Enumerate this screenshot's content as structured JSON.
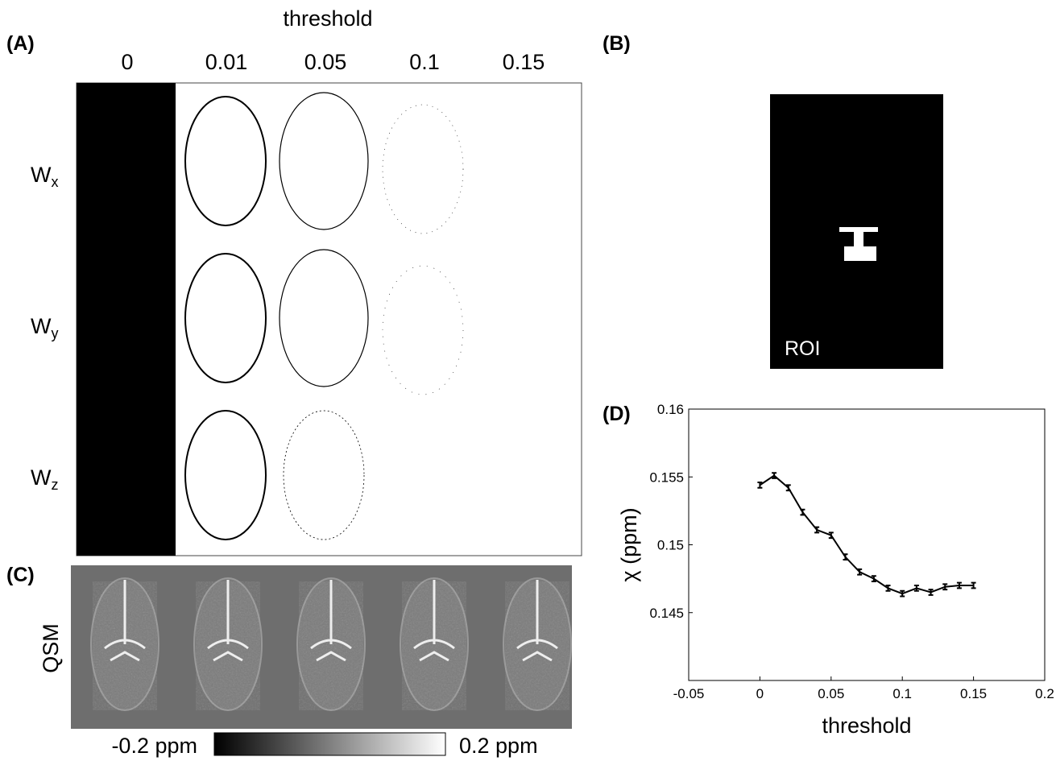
{
  "panels": {
    "a": {
      "label": "(A)",
      "heading": "threshold",
      "columns": [
        "0",
        "0.01",
        "0.05",
        "0.1",
        "0.15"
      ],
      "rows": [
        {
          "symbol": "W",
          "subscript": "x"
        },
        {
          "symbol": "W",
          "subscript": "y"
        },
        {
          "symbol": "W",
          "subscript": "z"
        }
      ]
    },
    "b": {
      "label": "(B)",
      "caption": "ROI"
    },
    "c": {
      "label": "(C)",
      "row_label": "QSM",
      "colorbar_min": "-0.2 ppm",
      "colorbar_max": "0.2 ppm"
    },
    "d": {
      "label": "(D)"
    }
  },
  "chart_data": {
    "type": "line",
    "xlabel": "threshold",
    "ylabel": "χ (ppm)",
    "color": "#000000",
    "x": [
      0,
      0.01,
      0.02,
      0.03,
      0.04,
      0.05,
      0.06,
      0.07,
      0.08,
      0.09,
      0.1,
      0.11,
      0.12,
      0.13,
      0.14,
      0.15
    ],
    "values": [
      0.1544,
      0.1551,
      0.1542,
      0.1524,
      0.1511,
      0.1507,
      0.1491,
      0.148,
      0.1475,
      0.1468,
      0.1464,
      0.1468,
      0.1465,
      0.1469,
      0.147,
      0.147
    ],
    "errors": [
      0.0002,
      0.0002,
      0.0002,
      0.0002,
      0.0002,
      0.0002,
      0.0002,
      0.0002,
      0.0002,
      0.0002,
      0.0002,
      0.0002,
      0.0002,
      0.0002,
      0.0002,
      0.0002
    ],
    "xlim": [
      -0.05,
      0.2
    ],
    "ylim": [
      0.14,
      0.16
    ],
    "xticks": [
      -0.05,
      0,
      0.05,
      0.1,
      0.15,
      0.2
    ],
    "yticks": [
      0.145,
      0.15,
      0.155,
      0.16
    ]
  }
}
